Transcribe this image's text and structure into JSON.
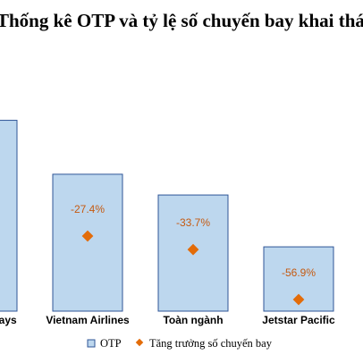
{
  "title": "Thống kê OTP và tỷ lệ số chuyến bay khai thác",
  "colors": {
    "bar_fill": "#bdd7ee",
    "bar_stroke": "#2f5597",
    "marker": "#e36c09",
    "label": "#c55a11"
  },
  "chart_data": {
    "type": "bar",
    "title": "Thống kê OTP và tỷ lệ số chuyến bay khai thác",
    "categories": [
      "Bamboo Airways",
      "Vietnam Airlines",
      "Toàn ngành",
      "Jetstar Pacific"
    ],
    "visible_categories": [
      "ways",
      "Vietnam Airlines",
      "Toàn ngành",
      "Jetstar Pacific"
    ],
    "series": [
      {
        "name": "OTP",
        "type": "bar",
        "values": [
          92,
          66,
          56,
          31
        ]
      },
      {
        "name": "Tăng trưởng số chuyến bay",
        "type": "scatter",
        "values": [
          null,
          -27.4,
          -33.7,
          -56.9
        ],
        "labels": [
          "",
          "-27.4%",
          "-33.7%",
          "-56.9%"
        ]
      }
    ],
    "legend": {
      "position": "bottom",
      "entries": [
        "OTP",
        "Tăng trưởng số chuyến bay"
      ]
    },
    "grid": false
  }
}
